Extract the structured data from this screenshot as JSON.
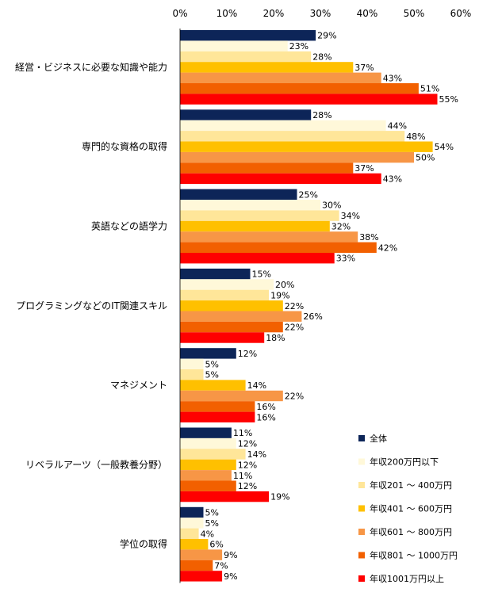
{
  "chart_data": {
    "type": "bar",
    "orientation": "horizontal",
    "title": "",
    "xlabel": "",
    "ylabel": "",
    "xlim": [
      0,
      60
    ],
    "tick_labels": [
      "0%",
      "10%",
      "20%",
      "30%",
      "40%",
      "50%",
      "60%"
    ],
    "unit": "%",
    "grid": false,
    "legend_position": "bottom-right",
    "categories": [
      "経営・ビジネスに必要な知識や能力",
      "専門的な資格の取得",
      "英語などの語学力",
      "プログラミングなどのIT関連スキル",
      "マネジメント",
      "リベラルアーツ（一般教養分野）",
      "学位の取得"
    ],
    "series": [
      {
        "name": "全体",
        "color": "#0d2558",
        "values": [
          29,
          28,
          25,
          15,
          12,
          11,
          5
        ]
      },
      {
        "name": "年収200万円以下",
        "color": "#fff8d9",
        "values": [
          23,
          44,
          30,
          20,
          5,
          12,
          5
        ]
      },
      {
        "name": "年収201 ～ 400万円",
        "color": "#ffe699",
        "values": [
          28,
          48,
          34,
          19,
          5,
          14,
          4
        ]
      },
      {
        "name": "年収401 ～ 600万円",
        "color": "#ffc000",
        "values": [
          37,
          54,
          32,
          22,
          14,
          12,
          6
        ]
      },
      {
        "name": "年収601 ～ 800万円",
        "color": "#f79646",
        "values": [
          43,
          50,
          38,
          26,
          22,
          11,
          9
        ]
      },
      {
        "name": "年収801 ～ 1000万円",
        "color": "#f26000",
        "values": [
          51,
          37,
          42,
          22,
          16,
          12,
          7
        ]
      },
      {
        "name": "年収1001万円以上",
        "color": "#ff0000",
        "values": [
          55,
          43,
          33,
          18,
          16,
          19,
          9
        ]
      }
    ]
  }
}
